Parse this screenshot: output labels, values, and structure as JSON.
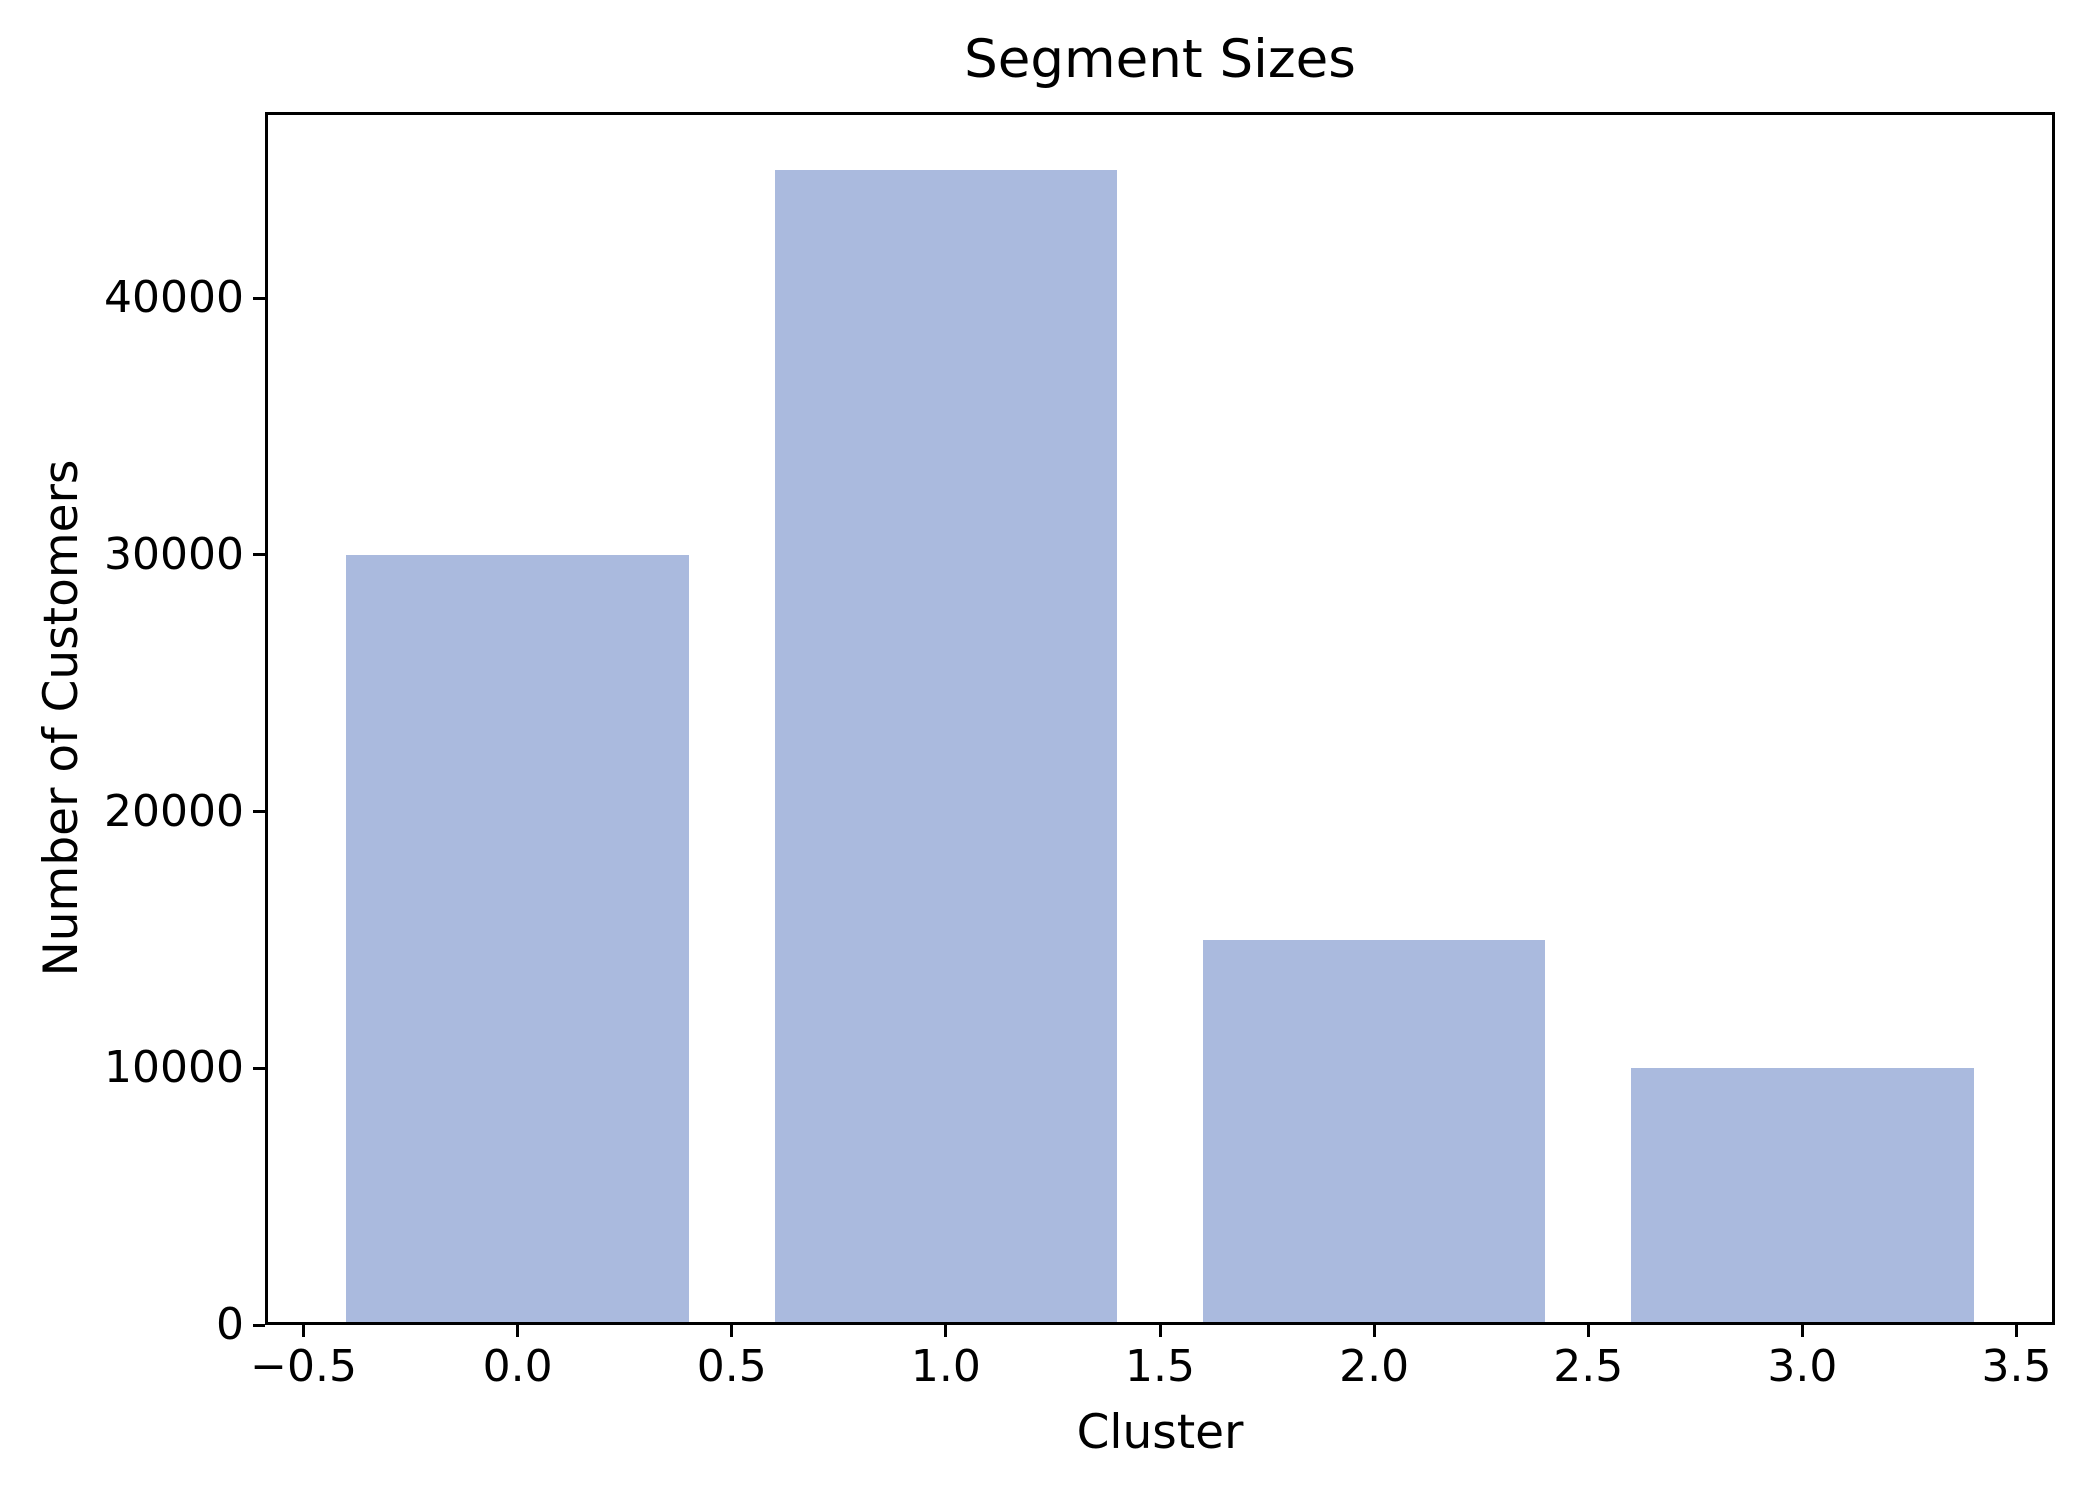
{
  "chart_data": {
    "type": "bar",
    "title": "Segment Sizes",
    "xlabel": "Cluster",
    "ylabel": "Number of Customers",
    "categories": [
      0,
      1,
      2,
      3
    ],
    "values": [
      30000,
      45000,
      15000,
      10000
    ],
    "bar_width": 0.8,
    "bar_color": "#aabade",
    "axis_color": "#000000",
    "background_color": "#ffffff",
    "xlim": [
      -0.59,
      3.59
    ],
    "ylim": [
      0,
      47250
    ],
    "xticks": [
      -0.5,
      0.0,
      0.5,
      1.0,
      1.5,
      2.0,
      2.5,
      3.0,
      3.5
    ],
    "xtick_labels": [
      "−0.5",
      "0.0",
      "0.5",
      "1.0",
      "1.5",
      "2.0",
      "2.5",
      "3.0",
      "3.5"
    ],
    "yticks": [
      0,
      10000,
      20000,
      30000,
      40000
    ],
    "ytick_labels": [
      "0",
      "10000",
      "20000",
      "30000",
      "40000"
    ],
    "grid": false,
    "legend": null
  }
}
